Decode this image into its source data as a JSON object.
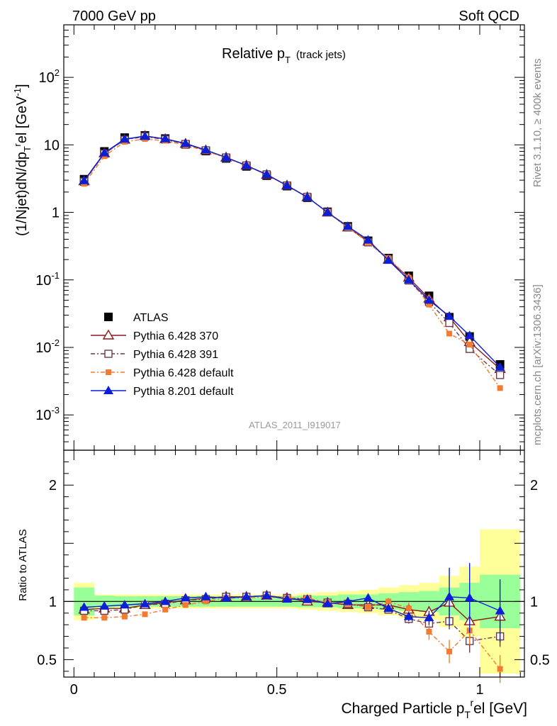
{
  "header": {
    "left": "7000 GeV pp",
    "right": "Soft QCD"
  },
  "side": {
    "rivet": "Rivet 3.1.10, ≥ 400k events",
    "mcplots": "mcplots.cern.ch [arXiv:1306.3436]"
  },
  "chart_data": [
    {
      "type": "line",
      "title": "Relative p",
      "title_sub": "T",
      "title_extra": "(track jets)",
      "ylabel": "(1/Njet)dN/dp",
      "ylabel_parts": {
        "pre": "(1/Njet)dN/dp",
        "sub": "T",
        "sup": "r",
        "mid": "el [GeV",
        "sup2": "-1",
        "post": "]"
      },
      "yscale": "log",
      "ylim": [
        0.0003,
        600
      ],
      "xlim": [
        -0.025,
        1.11
      ],
      "yticks": [
        {
          "v": 0.001,
          "base": "10",
          "exp": "-3"
        },
        {
          "v": 0.01,
          "base": "10",
          "exp": "-2"
        },
        {
          "v": 0.1,
          "base": "10",
          "exp": "-1"
        },
        {
          "v": 1,
          "label": "1"
        },
        {
          "v": 10,
          "label": "10"
        },
        {
          "v": 100,
          "base": "10",
          "exp": "2"
        }
      ],
      "x": [
        0.025,
        0.075,
        0.125,
        0.175,
        0.225,
        0.275,
        0.325,
        0.375,
        0.425,
        0.475,
        0.525,
        0.575,
        0.625,
        0.675,
        0.725,
        0.775,
        0.825,
        0.875,
        0.925,
        0.975,
        1.05
      ],
      "series": [
        {
          "name": "ATLAS",
          "color": "#000000",
          "marker": "square-filled",
          "dash": "",
          "values": [
            3.1,
            8.0,
            12.8,
            13.8,
            12.4,
            10.2,
            8.1,
            6.3,
            4.8,
            3.5,
            2.45,
            1.65,
            1.02,
            0.62,
            0.38,
            0.21,
            0.115,
            0.058,
            0.028,
            0.0145,
            0.0056
          ]
        },
        {
          "name": "Pythia 6.428 370",
          "color": "#8b1a1a",
          "marker": "triangle-open",
          "dash": "",
          "values": [
            2.9,
            7.5,
            12.0,
            13.6,
            12.2,
            10.4,
            8.3,
            6.5,
            4.95,
            3.6,
            2.5,
            1.68,
            1.0,
            0.6,
            0.37,
            0.2,
            0.108,
            0.053,
            0.028,
            0.012,
            0.0048
          ]
        },
        {
          "name": "Pythia 6.428 391",
          "color": "#6b3a4a",
          "marker": "square-open",
          "dash": "6,3,2,3",
          "values": [
            2.85,
            7.4,
            11.9,
            13.3,
            12.0,
            10.3,
            8.3,
            6.5,
            4.95,
            3.65,
            2.5,
            1.7,
            1.0,
            0.6,
            0.36,
            0.2,
            0.098,
            0.047,
            0.023,
            0.0095,
            0.0039
          ]
        },
        {
          "name": "Pythia 6.428 default",
          "color": "#f47a30",
          "marker": "square-small",
          "dash": "6,3,2,3",
          "values": [
            2.65,
            6.8,
            11.1,
            12.2,
            11.5,
            9.9,
            8.1,
            6.4,
            4.9,
            3.6,
            2.5,
            1.68,
            1.0,
            0.6,
            0.36,
            0.21,
            0.108,
            0.043,
            0.016,
            0.011,
            0.0025
          ]
        },
        {
          "name": "Pythia 8.201 default",
          "color": "#0a1fd6",
          "marker": "triangle-filled",
          "dash": "",
          "values": [
            2.95,
            7.6,
            12.2,
            13.4,
            12.3,
            10.5,
            8.4,
            6.5,
            4.95,
            3.65,
            2.5,
            1.68,
            1.0,
            0.62,
            0.39,
            0.195,
            0.1,
            0.05,
            0.029,
            0.015,
            0.0051
          ]
        }
      ],
      "legend_position": "lower-left",
      "watermark": "ATLAS_2011_I919017"
    },
    {
      "type": "line",
      "ylabel": "Ratio to ATLAS",
      "xlabel": "Charged Particle p",
      "xlabel_parts": {
        "pre": "Charged Particle p",
        "sub": "T",
        "sup": "r",
        "post": "el [GeV]"
      },
      "ylim": [
        0.35,
        2.3
      ],
      "xlim": [
        -0.025,
        1.11
      ],
      "xticks": [
        {
          "v": 0,
          "label": "0"
        },
        {
          "v": 0.5,
          "label": "0.5"
        },
        {
          "v": 1,
          "label": "1"
        }
      ],
      "yticks": [
        {
          "v": 0.5,
          "label": "0.5"
        },
        {
          "v": 1,
          "label": "1"
        },
        {
          "v": 2,
          "label": "2"
        }
      ],
      "bins": [
        0,
        0.05,
        0.1,
        0.15,
        0.2,
        0.25,
        0.3,
        0.35,
        0.4,
        0.45,
        0.5,
        0.55,
        0.6,
        0.65,
        0.7,
        0.75,
        0.8,
        0.85,
        0.9,
        0.95,
        1.0,
        1.1
      ],
      "band_outer": [
        0.16,
        0.06,
        0.06,
        0.06,
        0.06,
        0.06,
        0.06,
        0.06,
        0.06,
        0.06,
        0.06,
        0.07,
        0.08,
        0.09,
        0.1,
        0.12,
        0.14,
        0.16,
        0.22,
        0.3,
        0.62
      ],
      "band_inner": [
        0.12,
        0.05,
        0.045,
        0.045,
        0.045,
        0.045,
        0.045,
        0.045,
        0.045,
        0.045,
        0.045,
        0.05,
        0.05,
        0.06,
        0.06,
        0.07,
        0.08,
        0.09,
        0.12,
        0.16,
        0.23
      ],
      "x": [
        0.025,
        0.075,
        0.125,
        0.175,
        0.225,
        0.275,
        0.325,
        0.375,
        0.425,
        0.475,
        0.525,
        0.575,
        0.625,
        0.675,
        0.725,
        0.775,
        0.825,
        0.875,
        0.925,
        0.975,
        1.05
      ],
      "series": [
        {
          "name": "Pythia 6.428 370",
          "color": "#8b1a1a",
          "marker": "triangle-open",
          "dash": "",
          "values": [
            0.93,
            0.94,
            0.94,
            0.97,
            0.99,
            1.01,
            1.03,
            1.04,
            1.04,
            1.05,
            1.03,
            1.0,
            0.99,
            0.97,
            0.97,
            0.97,
            0.93,
            0.91,
            0.99,
            0.83,
            0.87
          ],
          "err": [
            0.01,
            0.01,
            0.01,
            0.01,
            0.01,
            0.01,
            0.01,
            0.01,
            0.01,
            0.01,
            0.01,
            0.01,
            0.02,
            0.02,
            0.02,
            0.03,
            0.04,
            0.05,
            0.08,
            0.12,
            0.1
          ]
        },
        {
          "name": "Pythia 6.428 391",
          "color": "#6b3a4a",
          "marker": "square-open",
          "dash": "6,3,2,3",
          "values": [
            0.92,
            0.92,
            0.93,
            0.97,
            0.98,
            1.01,
            1.02,
            1.04,
            1.04,
            1.05,
            1.03,
            1.02,
            0.99,
            0.98,
            0.95,
            0.93,
            0.85,
            0.81,
            0.83,
            0.66,
            0.7
          ],
          "err": [
            0.01,
            0.01,
            0.01,
            0.01,
            0.01,
            0.01,
            0.01,
            0.01,
            0.01,
            0.01,
            0.01,
            0.01,
            0.02,
            0.02,
            0.02,
            0.03,
            0.04,
            0.05,
            0.07,
            0.1,
            0.09
          ]
        },
        {
          "name": "Pythia 6.428 default",
          "color": "#f47a30",
          "marker": "square-small",
          "dash": "6,3,2,3",
          "values": [
            0.86,
            0.86,
            0.87,
            0.89,
            0.93,
            0.97,
            1.0,
            1.03,
            1.03,
            1.04,
            1.03,
            1.03,
            0.99,
            0.98,
            0.95,
            1.0,
            0.94,
            0.74,
            0.57,
            0.75,
            0.42
          ],
          "err": [
            0.01,
            0.01,
            0.01,
            0.01,
            0.01,
            0.01,
            0.01,
            0.01,
            0.01,
            0.01,
            0.01,
            0.01,
            0.02,
            0.02,
            0.02,
            0.03,
            0.05,
            0.07,
            0.1,
            0.12,
            0.12
          ]
        },
        {
          "name": "Pythia 8.201 default",
          "color": "#0a1fd6",
          "marker": "triangle-filled",
          "dash": "",
          "values": [
            0.95,
            0.96,
            0.97,
            0.98,
            1.0,
            1.03,
            1.04,
            1.03,
            1.04,
            1.05,
            1.02,
            1.02,
            0.98,
            1.0,
            1.03,
            0.94,
            0.87,
            0.86,
            1.04,
            1.03,
            0.92
          ],
          "err": [
            0.01,
            0.01,
            0.01,
            0.01,
            0.01,
            0.01,
            0.01,
            0.01,
            0.01,
            0.01,
            0.01,
            0.01,
            0.02,
            0.02,
            0.03,
            0.03,
            0.04,
            0.06,
            0.25,
            0.3,
            0.27
          ]
        }
      ],
      "colors": {
        "band_outer": "#ffff99",
        "band_inner": "#99ff99"
      }
    }
  ]
}
